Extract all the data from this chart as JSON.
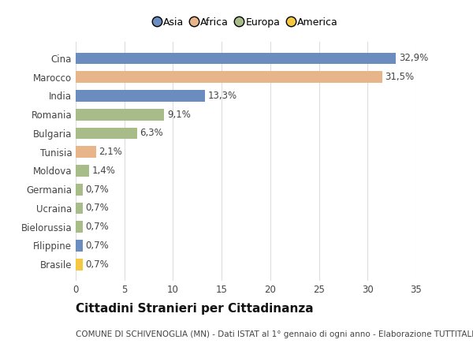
{
  "categories": [
    "Cina",
    "Marocco",
    "India",
    "Romania",
    "Bulgaria",
    "Tunisia",
    "Moldova",
    "Germania",
    "Ucraina",
    "Bielorussia",
    "Filippine",
    "Brasile"
  ],
  "values": [
    32.9,
    31.5,
    13.3,
    9.1,
    6.3,
    2.1,
    1.4,
    0.7,
    0.7,
    0.7,
    0.7,
    0.7
  ],
  "labels": [
    "32,9%",
    "31,5%",
    "13,3%",
    "9,1%",
    "6,3%",
    "2,1%",
    "1,4%",
    "0,7%",
    "0,7%",
    "0,7%",
    "0,7%",
    "0,7%"
  ],
  "colors": [
    "#6b8cbf",
    "#e8b48a",
    "#6b8cbf",
    "#a8bc8a",
    "#a8bc8a",
    "#e8b48a",
    "#a8bc8a",
    "#a8bc8a",
    "#a8bc8a",
    "#a8bc8a",
    "#6b8cbf",
    "#f5c842"
  ],
  "legend_labels": [
    "Asia",
    "Africa",
    "Europa",
    "America"
  ],
  "legend_colors": [
    "#6b8cbf",
    "#e8b48a",
    "#a8bc8a",
    "#f5c842"
  ],
  "xlim": [
    0,
    35
  ],
  "xticks": [
    0,
    5,
    10,
    15,
    20,
    25,
    30,
    35
  ],
  "title": "Cittadini Stranieri per Cittadinanza",
  "subtitle": "COMUNE DI SCHIVENOGLIA (MN) - Dati ISTAT al 1° gennaio di ogni anno - Elaborazione TUTTITALIA.IT",
  "bg_color": "#ffffff",
  "grid_color": "#dddddd",
  "bar_height": 0.62,
  "label_fontsize": 8.5,
  "tick_fontsize": 8.5,
  "title_fontsize": 11,
  "subtitle_fontsize": 7.5,
  "legend_fontsize": 9
}
